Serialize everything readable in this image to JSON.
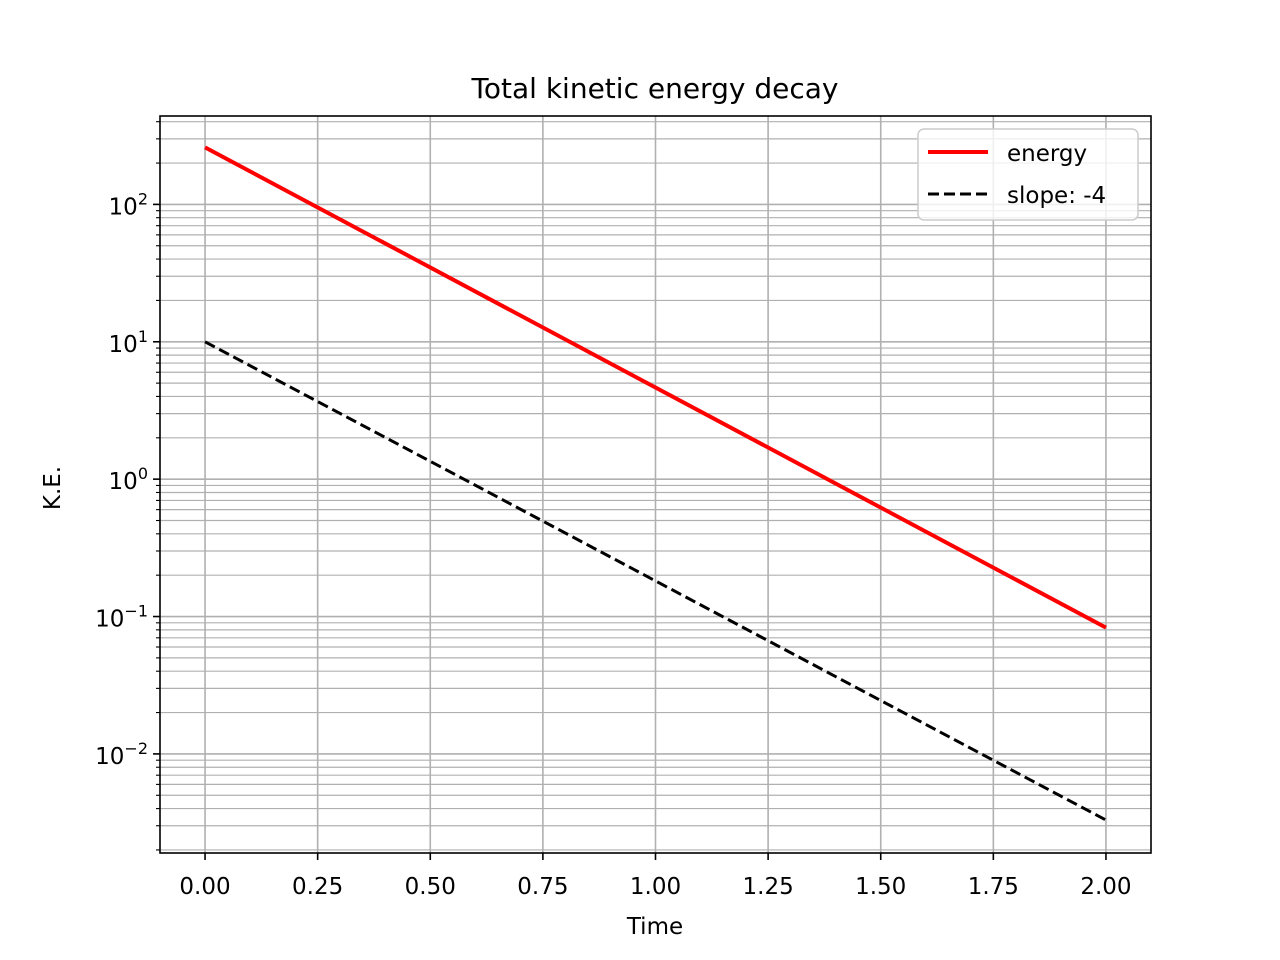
{
  "chart_data": {
    "type": "line",
    "title": "Total kinetic energy decay",
    "xlabel": "Time",
    "ylabel": "K.E.",
    "xlim": [
      -0.1,
      2.1
    ],
    "ylim": [
      0.0019,
      440
    ],
    "yscale": "log",
    "grid": "major and minor",
    "legend_position": "top-right",
    "x_ticks": [
      "0.00",
      "0.25",
      "0.50",
      "0.75",
      "1.00",
      "1.25",
      "1.50",
      "1.75",
      "2.00"
    ],
    "y_ticks": [
      {
        "base": "10",
        "exp": "−2",
        "value": 0.01
      },
      {
        "base": "10",
        "exp": "−1",
        "value": 0.1
      },
      {
        "base": "10",
        "exp": "0",
        "value": 1
      },
      {
        "base": "10",
        "exp": "1",
        "value": 10
      },
      {
        "base": "10",
        "exp": "2",
        "value": 100
      }
    ],
    "series": [
      {
        "name": "energy",
        "color": "#ff0000",
        "style": "solid",
        "x": [
          0,
          2
        ],
        "y": [
          260,
          0.083
        ]
      },
      {
        "name": "slope: -4",
        "color": "#000000",
        "style": "dashed",
        "x": [
          0,
          2
        ],
        "y": [
          10,
          0.0033
        ]
      }
    ]
  }
}
